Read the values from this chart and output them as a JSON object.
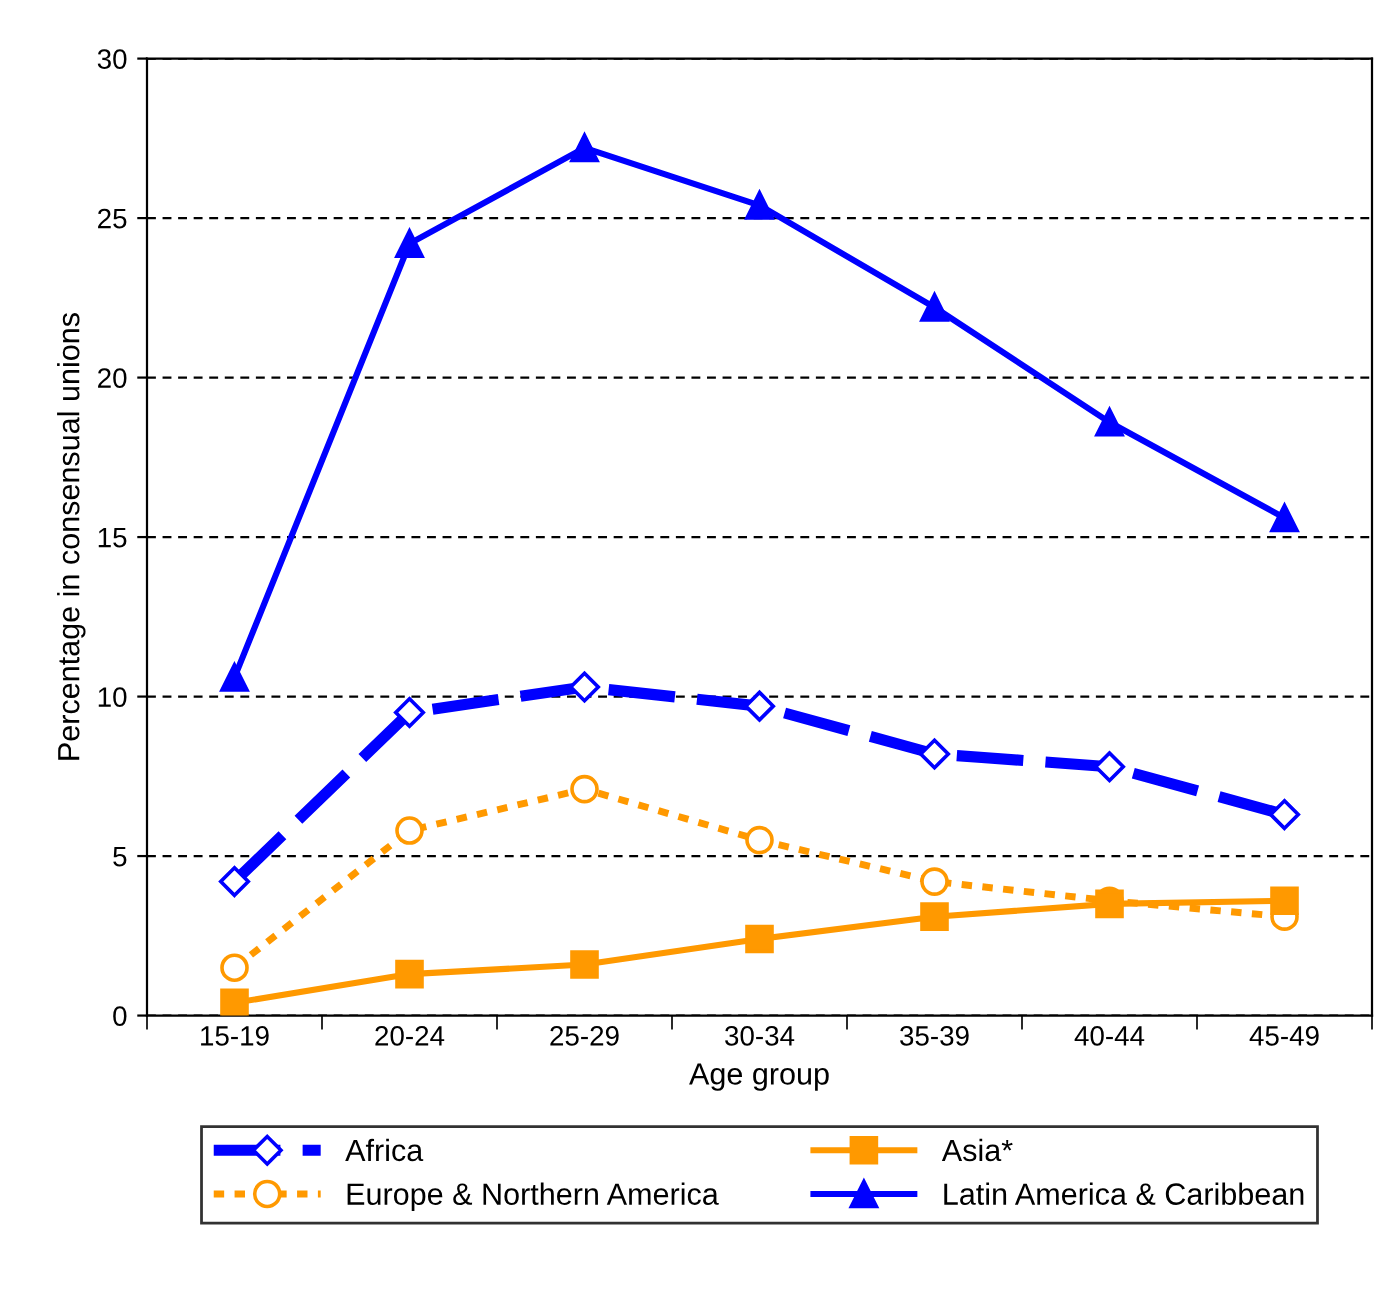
{
  "chart_data": {
    "type": "line",
    "xlabel": "Age group",
    "ylabel": "Percentage in consensual unions",
    "categories": [
      "15-19",
      "20-24",
      "25-29",
      "30-34",
      "35-39",
      "40-44",
      "45-49"
    ],
    "ylim": [
      0,
      30
    ],
    "yticks": [
      0,
      5,
      10,
      15,
      20,
      25,
      30
    ],
    "grid": "y",
    "legend": "bottom",
    "series": [
      {
        "name": "Africa",
        "color": "#0000ff",
        "marker": "diamond",
        "line_style": "dashed",
        "values": [
          4.2,
          9.5,
          10.3,
          9.7,
          8.2,
          7.8,
          6.3
        ]
      },
      {
        "name": "Asia*",
        "color": "#ff9900",
        "marker": "square",
        "line_style": "solid",
        "values": [
          0.4,
          1.3,
          1.6,
          2.4,
          3.1,
          3.5,
          3.6
        ]
      },
      {
        "name": "Europe & Northern America",
        "color": "#ff9900",
        "marker": "circle",
        "line_style": "dotted",
        "values": [
          1.5,
          5.8,
          7.1,
          5.5,
          4.2,
          3.6,
          3.1
        ]
      },
      {
        "name": "Latin America & Caribbean",
        "color": "#0000ff",
        "marker": "triangle",
        "line_style": "solid",
        "values": [
          10.6,
          24.2,
          27.2,
          25.4,
          22.2,
          18.6,
          15.6
        ]
      }
    ]
  }
}
